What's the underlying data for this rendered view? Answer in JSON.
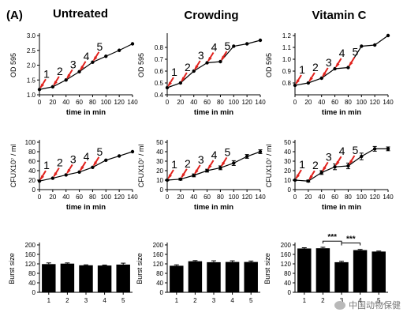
{
  "panel_label": "(A)",
  "columns": [
    "Untreated",
    "Crowding",
    "Vitamin C"
  ],
  "watermark": "中国动物保健",
  "colors": {
    "line": "#000000",
    "arrow": "#e0201b",
    "bar": "#000000"
  },
  "chart_data": [
    {
      "type": "line",
      "column": "Untreated",
      "row": "od",
      "xlabel": "time in min",
      "ylabel": "OD 595",
      "xlim": [
        0,
        140
      ],
      "ylim": [
        1.0,
        3.0
      ],
      "xticks": [
        "0",
        "20",
        "40",
        "60",
        "80",
        "100",
        "120",
        "140"
      ],
      "yticks": [
        "1.0",
        "1.5",
        "2.0",
        "2.5",
        "3.0"
      ],
      "x": [
        0,
        20,
        40,
        60,
        80,
        100,
        120,
        140
      ],
      "y": [
        1.18,
        1.27,
        1.5,
        1.78,
        2.1,
        2.3,
        2.5,
        2.72
      ],
      "annotations": [
        {
          "label": "1",
          "x": 0,
          "y": 1.18
        },
        {
          "label": "2",
          "x": 20,
          "y": 1.27
        },
        {
          "label": "3",
          "x": 40,
          "y": 1.5
        },
        {
          "label": "4",
          "x": 60,
          "y": 1.78
        },
        {
          "label": "5",
          "x": 80,
          "y": 2.1
        }
      ]
    },
    {
      "type": "line",
      "column": "Crowding",
      "row": "od",
      "xlabel": "time in min",
      "ylabel": "OD 595",
      "xlim": [
        0,
        140
      ],
      "ylim": [
        0.4,
        0.9
      ],
      "xticks": [
        "0",
        "20",
        "40",
        "60",
        "80",
        "100",
        "120",
        "140"
      ],
      "yticks": [
        "0.4",
        "0.5",
        "0.6",
        "0.7",
        "0.8"
      ],
      "x": [
        0,
        20,
        40,
        60,
        80,
        100,
        120,
        140
      ],
      "y": [
        0.46,
        0.5,
        0.6,
        0.67,
        0.68,
        0.81,
        0.83,
        0.86
      ],
      "annotations": [
        {
          "label": "1",
          "x": 0,
          "y": 0.46
        },
        {
          "label": "2",
          "x": 20,
          "y": 0.5
        },
        {
          "label": "3",
          "x": 40,
          "y": 0.6
        },
        {
          "label": "4",
          "x": 60,
          "y": 0.67
        },
        {
          "label": "5",
          "x": 80,
          "y": 0.68
        }
      ]
    },
    {
      "type": "line",
      "column": "Vitamin C",
      "row": "od",
      "xlabel": "time in min",
      "ylabel": "OD 595",
      "xlim": [
        0,
        140
      ],
      "ylim": [
        0.7,
        1.2
      ],
      "xticks": [
        "0",
        "20",
        "40",
        "60",
        "80",
        "100",
        "120",
        "140"
      ],
      "yticks": [
        "0.8",
        "0.9",
        "1.0",
        "1.1",
        "1.2"
      ],
      "x": [
        0,
        20,
        40,
        60,
        80,
        100,
        120,
        140
      ],
      "y": [
        0.78,
        0.8,
        0.84,
        0.92,
        0.93,
        1.11,
        1.12,
        1.2
      ],
      "annotations": [
        {
          "label": "1",
          "x": 0,
          "y": 0.78
        },
        {
          "label": "2",
          "x": 20,
          "y": 0.8
        },
        {
          "label": "3",
          "x": 40,
          "y": 0.84
        },
        {
          "label": "4",
          "x": 60,
          "y": 0.92
        },
        {
          "label": "5",
          "x": 80,
          "y": 0.93
        }
      ]
    },
    {
      "type": "line",
      "column": "Untreated",
      "row": "cfu",
      "xlabel": "time in min",
      "ylabel": "CFUX10⁷ / ml",
      "xlim": [
        0,
        140
      ],
      "ylim": [
        0,
        100
      ],
      "xticks": [
        "0",
        "20",
        "40",
        "60",
        "80",
        "100",
        "120",
        "140"
      ],
      "yticks": [
        "0",
        "20",
        "40",
        "60",
        "80",
        "100"
      ],
      "x": [
        0,
        20,
        40,
        60,
        80,
        100,
        120,
        140
      ],
      "y": [
        18,
        24,
        31,
        37,
        47,
        62,
        71,
        80
      ],
      "annotations": [
        {
          "label": "1",
          "x": 0,
          "y": 18
        },
        {
          "label": "2",
          "x": 20,
          "y": 24
        },
        {
          "label": "3",
          "x": 40,
          "y": 31
        },
        {
          "label": "4",
          "x": 60,
          "y": 37
        },
        {
          "label": "5",
          "x": 80,
          "y": 47
        }
      ]
    },
    {
      "type": "line",
      "column": "Crowding",
      "row": "cfu",
      "xlabel": "time in min",
      "ylabel": "CFUX10⁷ / ml",
      "xlim": [
        0,
        140
      ],
      "ylim": [
        0,
        50
      ],
      "xticks": [
        "0",
        "20",
        "40",
        "60",
        "80",
        "100",
        "120",
        "140"
      ],
      "yticks": [
        "0",
        "10",
        "20",
        "30",
        "40",
        "50"
      ],
      "x": [
        0,
        20,
        40,
        60,
        80,
        100,
        120,
        140
      ],
      "y": [
        10,
        11,
        15,
        20,
        23,
        28,
        35,
        40
      ],
      "errors": [
        0.5,
        1,
        1.5,
        1.5,
        2,
        2.5,
        2,
        2
      ],
      "annotations": [
        {
          "label": "1",
          "x": 0,
          "y": 10
        },
        {
          "label": "2",
          "x": 20,
          "y": 11
        },
        {
          "label": "3",
          "x": 40,
          "y": 15
        },
        {
          "label": "4",
          "x": 60,
          "y": 20
        },
        {
          "label": "5",
          "x": 80,
          "y": 23
        }
      ]
    },
    {
      "type": "line",
      "column": "Vitamin C",
      "row": "cfu",
      "xlabel": "time in min",
      "ylabel": "CFUX10⁷ / ml",
      "xlim": [
        0,
        140
      ],
      "ylim": [
        0,
        50
      ],
      "xticks": [
        "0",
        "20",
        "40",
        "60",
        "80",
        "100",
        "120",
        "140"
      ],
      "yticks": [
        "0",
        "10",
        "20",
        "30",
        "40",
        "50"
      ],
      "x": [
        0,
        20,
        40,
        60,
        80,
        100,
        120,
        140
      ],
      "y": [
        10,
        9,
        18,
        24,
        25,
        35,
        43,
        43
      ],
      "errors": [
        0.5,
        1,
        2,
        3,
        3,
        3.5,
        2.5,
        2
      ],
      "annotations": [
        {
          "label": "1",
          "x": 0,
          "y": 10
        },
        {
          "label": "2",
          "x": 20,
          "y": 9
        },
        {
          "label": "3",
          "x": 40,
          "y": 18
        },
        {
          "label": "4",
          "x": 60,
          "y": 24
        },
        {
          "label": "5",
          "x": 80,
          "y": 25
        }
      ]
    },
    {
      "type": "bar",
      "column": "Untreated",
      "row": "burst",
      "ylabel": "Burst size",
      "ylim": [
        0,
        200
      ],
      "yticks": [
        "0",
        "40",
        "80",
        "120",
        "160",
        "200"
      ],
      "categories": [
        "1",
        "2",
        "3",
        "4",
        "5"
      ],
      "values": [
        119,
        121,
        114,
        113,
        117
      ],
      "errors": [
        5,
        3,
        2,
        2,
        6
      ]
    },
    {
      "type": "bar",
      "column": "Crowding",
      "row": "burst",
      "ylabel": "Burst size",
      "ylim": [
        0,
        200
      ],
      "yticks": [
        "0",
        "40",
        "80",
        "120",
        "160",
        "200"
      ],
      "categories": [
        "1",
        "2",
        "3",
        "4",
        "5"
      ],
      "values": [
        112,
        131,
        127,
        128,
        128
      ],
      "errors": [
        4,
        3,
        6,
        5,
        4
      ]
    },
    {
      "type": "bar",
      "column": "Vitamin C",
      "row": "burst",
      "ylabel": "Burst size",
      "ylim": [
        0,
        200
      ],
      "yticks": [
        "0",
        "40",
        "80",
        "120",
        "160",
        "200"
      ],
      "categories": [
        "1",
        "2",
        "3",
        "4",
        "5"
      ],
      "values": [
        185,
        186,
        127,
        178,
        172
      ],
      "errors": [
        3,
        4,
        4,
        3,
        2
      ],
      "significance": [
        {
          "from": 2,
          "to": 3,
          "label": "***"
        },
        {
          "from": 3,
          "to": 4,
          "label": "***"
        }
      ]
    }
  ]
}
